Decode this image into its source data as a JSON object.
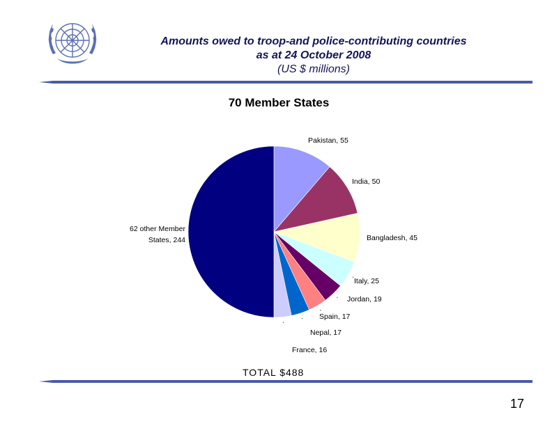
{
  "header": {
    "line1": "Amounts owed to troop-and police-contributing countries",
    "line2": "as at 24 October 2008",
    "line3": "(US $ millions)"
  },
  "colors": {
    "title": "#14145a",
    "rule": "#4a5aa8"
  },
  "chart_data": {
    "type": "pie",
    "title": "70 Member States",
    "slices": [
      {
        "name": "Pakistan",
        "value": 55,
        "color": "#9999ff",
        "label": "Pakistan,   55"
      },
      {
        "name": "India",
        "value": 50,
        "color": "#993366",
        "label": "India,   50"
      },
      {
        "name": "Bangladesh",
        "value": 45,
        "color": "#ffffcc",
        "label": "Bangladesh,   45"
      },
      {
        "name": "Italy",
        "value": 25,
        "color": "#ccffff",
        "label": "Italy,   25"
      },
      {
        "name": "Jordan",
        "value": 19,
        "color": "#660066",
        "label": "Jordan,   19"
      },
      {
        "name": "Spain",
        "value": 17,
        "color": "#ff8080",
        "label": "Spain,   17"
      },
      {
        "name": "Nepal",
        "value": 17,
        "color": "#0066cc",
        "label": "Nepal,   17"
      },
      {
        "name": "France",
        "value": 16,
        "color": "#ccccff",
        "label": "France,   16"
      },
      {
        "name": "62 other Member States",
        "value": 244,
        "color": "#000080",
        "label_line1": "62 other Member",
        "label_line2": "States, 244"
      }
    ],
    "total_label": "TOTAL  $488"
  },
  "footer": {
    "page_number": "17"
  }
}
